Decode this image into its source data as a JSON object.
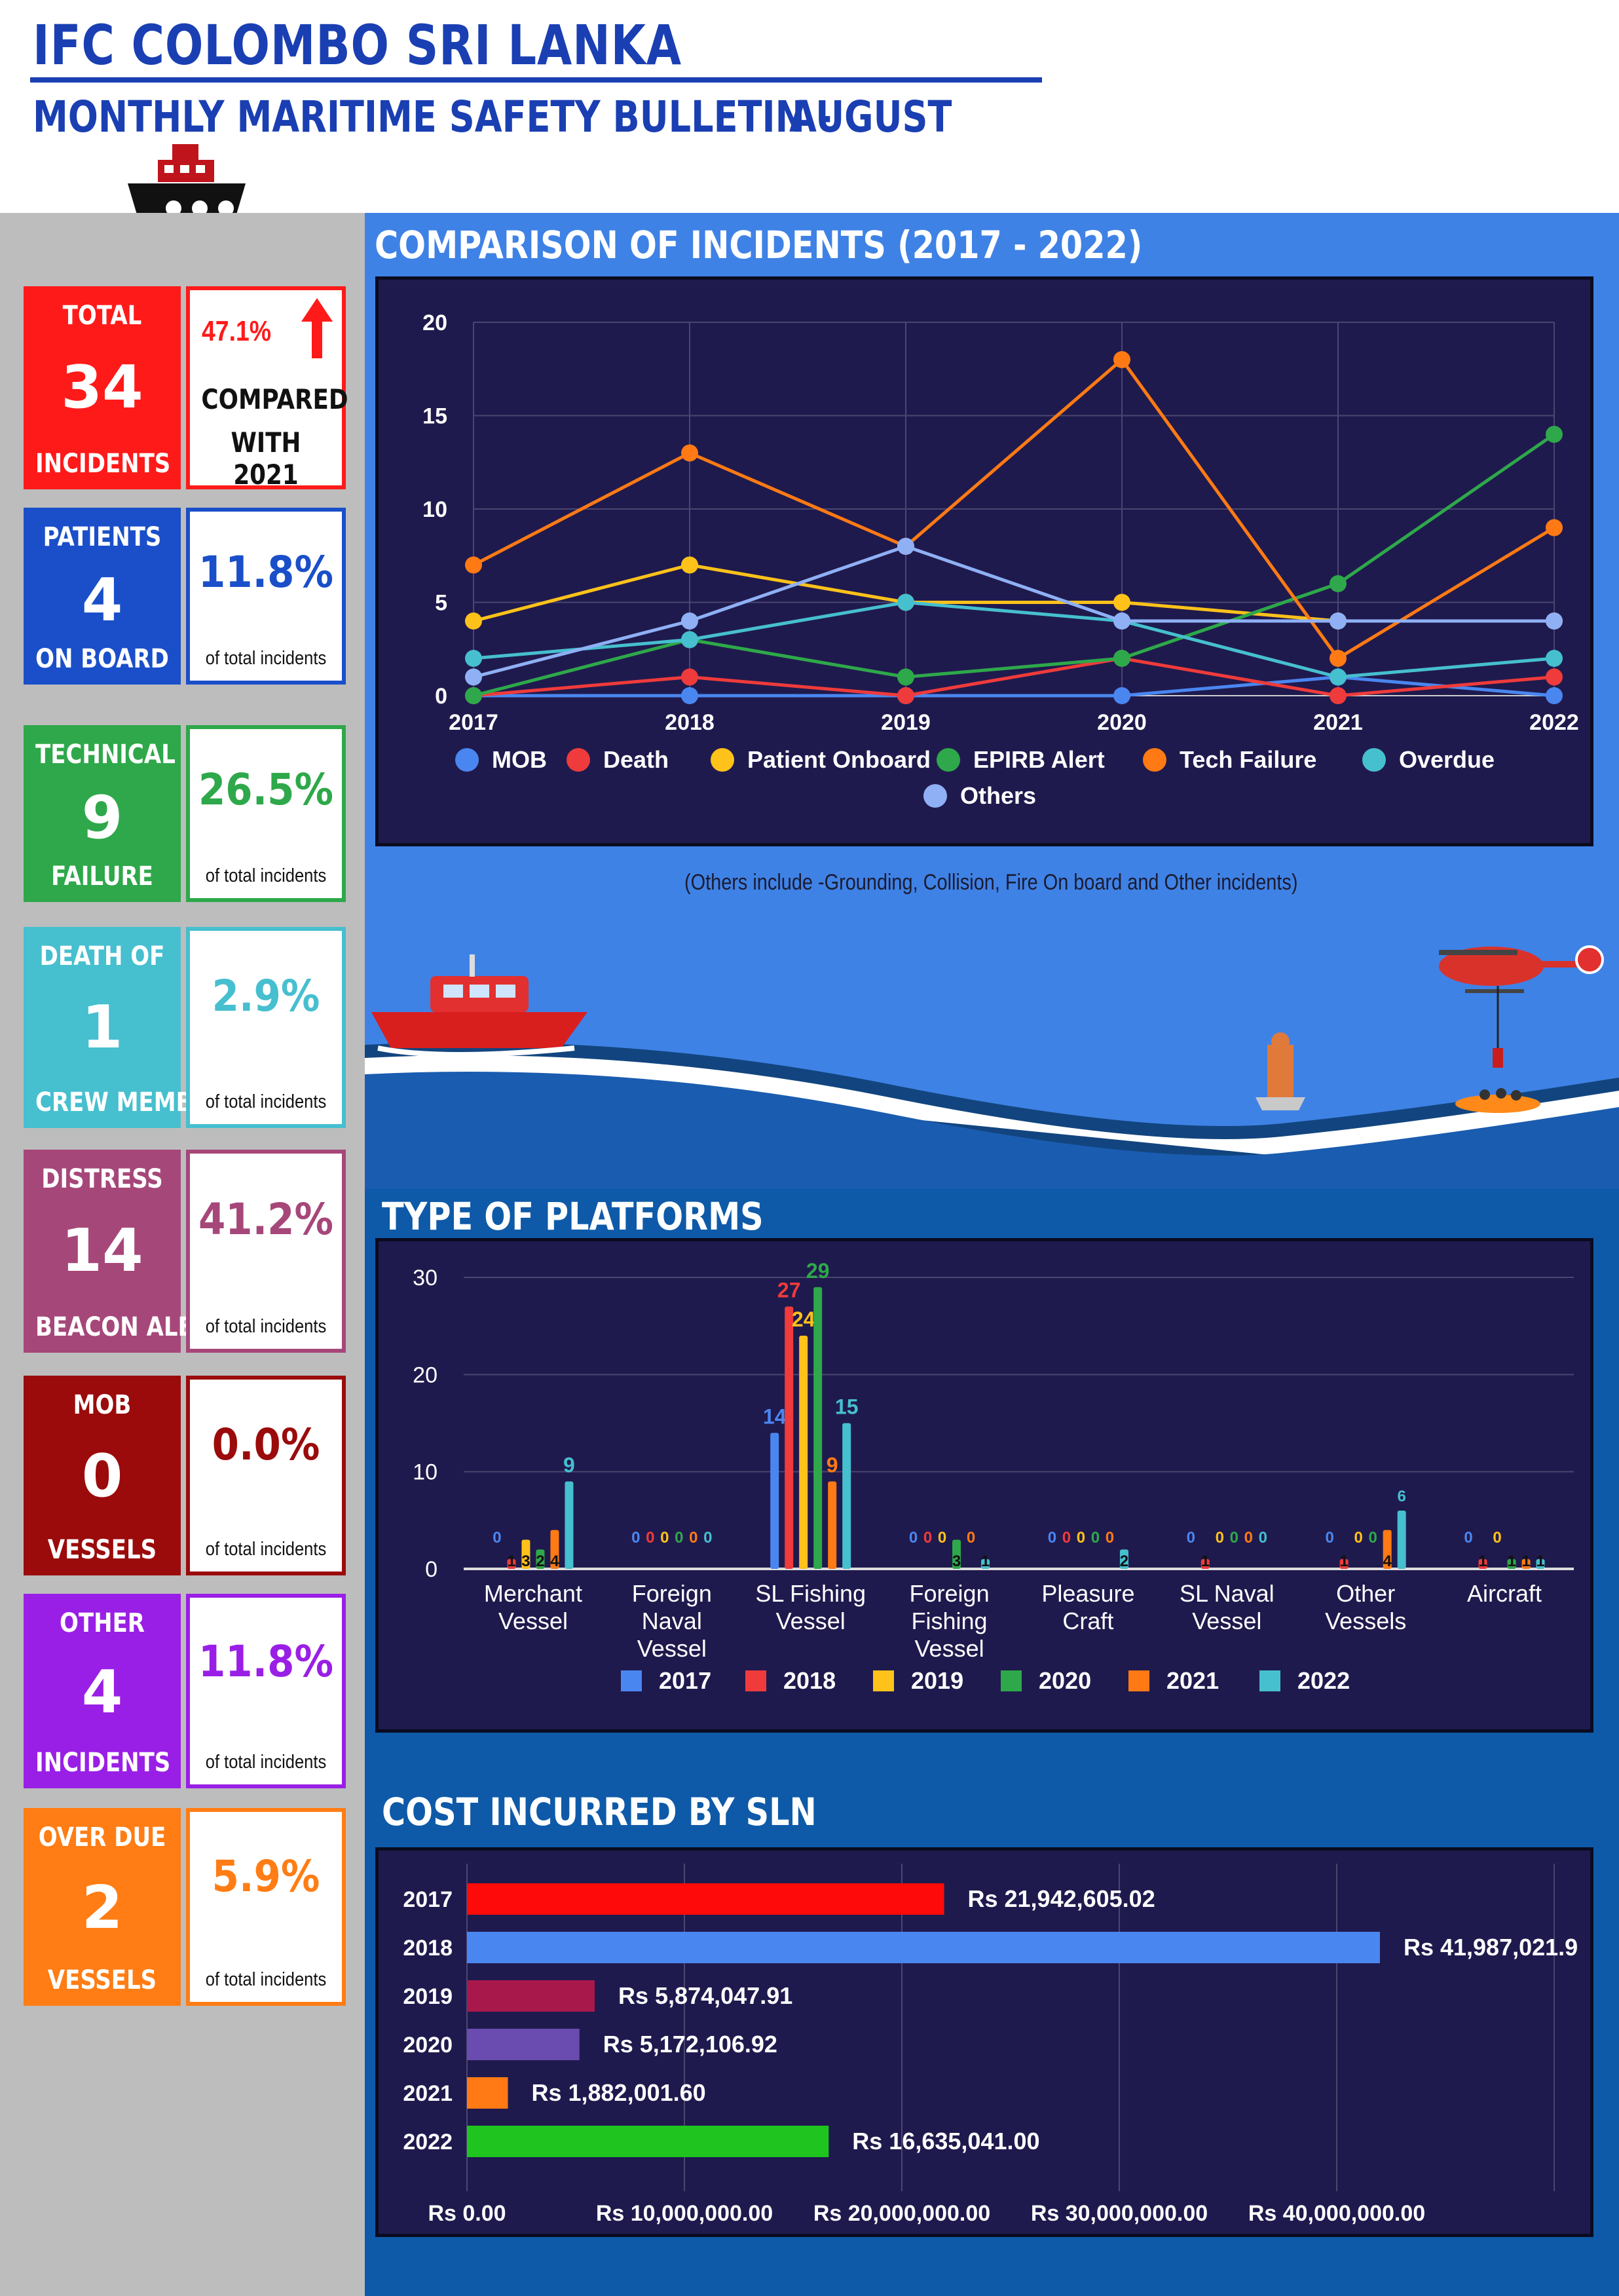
{
  "header": {
    "title": "IFC COLOMBO SRI LANKA",
    "subtitle": "MONTHLY MARITIME SAFETY BULLETIN -",
    "month": "AUGUST"
  },
  "colors": {
    "blue": "#1a3fb3",
    "sidebar": "#bdbdbd",
    "main": "#3f82e6",
    "panel": "#1f1a4d"
  },
  "stats": [
    {
      "top": "TOTAL",
      "value": "34",
      "bottom": "INCIDENTS",
      "color": "#ff1a1a",
      "pct": "47.1%",
      "sub1": "COMPARED",
      "sub2": "WITH 2021",
      "icon": "up-arrow-icon"
    },
    {
      "top": "PATIENTS",
      "value": "4",
      "bottom": "ON BOARD",
      "color": "#1a4fc9",
      "pct": "11.8%",
      "sub": "of total incidents"
    },
    {
      "top": "TECHNICAL",
      "value": "9",
      "bottom": "FAILURE",
      "color": "#2ea84a",
      "pct": "26.5%",
      "sub": "of total incidents"
    },
    {
      "top": "DEATH OF",
      "value": "1",
      "bottom": "CREW MEMBER",
      "color": "#46bfcf",
      "pct": "2.9%",
      "sub": "of total incidents"
    },
    {
      "top": "DISTRESS",
      "value": "14",
      "bottom": "BEACON ALERT",
      "color": "#a6477a",
      "pct": "41.2%",
      "sub": "of total incidents"
    },
    {
      "top": "MOB",
      "value": "0",
      "bottom": "VESSELS",
      "color": "#9b0b0b",
      "pct": "0.0%",
      "sub": "of total incidents"
    },
    {
      "top": "OTHER",
      "value": "4",
      "bottom": "INCIDENTS",
      "color": "#9a1fe6",
      "pct": "11.8%",
      "sub": "of total incidents"
    },
    {
      "top": "OVER DUE",
      "value": "2",
      "bottom": "VESSELS",
      "color": "#ff7d14",
      "pct": "5.9%",
      "sub": "of total incidents"
    }
  ],
  "incidents_title": "COMPARISON OF INCIDENTS (2017 - 2022)",
  "incidents_note": "(Others include -Grounding, Collision, Fire On board and Other incidents)",
  "platforms_title": "TYPE OF PLATFORMS",
  "cost_title": "COST INCURRED BY SLN",
  "chart_data": [
    {
      "type": "line",
      "x": [
        "2017",
        "2018",
        "2019",
        "2020",
        "2021",
        "2022"
      ],
      "ylim": [
        0,
        20
      ],
      "yticks": [
        0,
        5,
        10,
        15,
        20
      ],
      "legend": "bottom",
      "series": [
        {
          "name": "MOB",
          "color": "#4a86f0",
          "values": [
            0,
            0,
            0,
            0,
            1,
            0
          ]
        },
        {
          "name": "Death",
          "color": "#ef3b3b",
          "values": [
            0,
            1,
            0,
            2,
            0,
            1
          ]
        },
        {
          "name": "Patient Onboard",
          "color": "#ffc21a",
          "values": [
            4,
            7,
            5,
            5,
            4,
            4
          ]
        },
        {
          "name": "EPIRB Alert",
          "color": "#2ea84a",
          "values": [
            0,
            3,
            1,
            2,
            6,
            14
          ]
        },
        {
          "name": "Tech Failure",
          "color": "#ff7a14",
          "values": [
            7,
            13,
            8,
            18,
            2,
            9
          ]
        },
        {
          "name": "Overdue",
          "color": "#46bfcf",
          "values": [
            2,
            3,
            5,
            4,
            1,
            2
          ]
        },
        {
          "name": "Others",
          "color": "#8fb0f5",
          "values": [
            1,
            4,
            8,
            4,
            4,
            4
          ]
        }
      ]
    },
    {
      "type": "bar",
      "categories": [
        [
          "Merchant",
          "Vessel"
        ],
        [
          "Foreign",
          "Naval",
          "Vessel"
        ],
        [
          "SL Fishing",
          "Vessel"
        ],
        [
          "Foreign",
          "Fishing",
          "Vessel"
        ],
        [
          "Pleasure",
          "Craft"
        ],
        [
          "SL Naval",
          "Vessel"
        ],
        [
          "Other",
          "Vessels"
        ],
        [
          "Aircraft"
        ]
      ],
      "ylim": [
        0,
        30
      ],
      "yticks": [
        0,
        10,
        20,
        30
      ],
      "legend": "bottom",
      "series": [
        {
          "name": "2017",
          "color": "#4a86f0",
          "values": [
            0,
            0,
            14,
            0,
            0,
            0,
            0,
            0
          ]
        },
        {
          "name": "2018",
          "color": "#ef3b3b",
          "values": [
            1,
            0,
            27,
            0,
            0,
            1,
            1,
            1
          ]
        },
        {
          "name": "2019",
          "color": "#ffc21a",
          "values": [
            3,
            0,
            24,
            0,
            0,
            0,
            0,
            0
          ]
        },
        {
          "name": "2020",
          "color": "#2ea84a",
          "values": [
            2,
            0,
            29,
            3,
            0,
            0,
            0,
            1
          ]
        },
        {
          "name": "2021",
          "color": "#ff7a14",
          "values": [
            4,
            0,
            9,
            0,
            0,
            0,
            4,
            1
          ]
        },
        {
          "name": "2022",
          "color": "#46bfcf",
          "values": [
            9,
            0,
            15,
            1,
            2,
            0,
            6,
            1
          ]
        }
      ]
    },
    {
      "type": "bar",
      "orientation": "horizontal",
      "categories": [
        "2017",
        "2018",
        "2019",
        "2020",
        "2021",
        "2022"
      ],
      "values": [
        21942605.02,
        41987021.9,
        5874047.91,
        5172106.92,
        1882001.6,
        16635041.0
      ],
      "labels": [
        "Rs 21,942,605.02",
        "Rs 41,987,021.9",
        "Rs 5,874,047.91",
        "Rs 5,172,106.92",
        "Rs 1,882,001.60",
        "Rs 16,635,041.00"
      ],
      "colors": [
        "#ff0a0a",
        "#4a86f0",
        "#a8184a",
        "#6a4bb0",
        "#ff7a14",
        "#1fc41f"
      ],
      "xlim": [
        0,
        50000000
      ],
      "xticks": [
        "Rs 0.00",
        "Rs 10,000,000.00",
        "Rs 20,000,000.00",
        "Rs 30,000,000.00",
        "Rs 40,000,000.00"
      ]
    }
  ]
}
